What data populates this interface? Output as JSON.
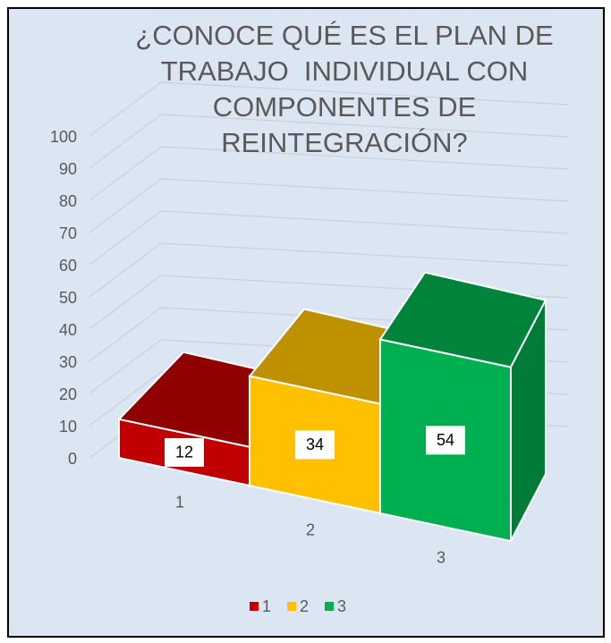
{
  "chart_data": {
    "type": "bar3d",
    "title": "¿CONOCE QUÉ ES EL PLAN DE TRABAJO  INDIVIDUAL CON COMPONENTES DE REINTEGRACIÓN?",
    "categories": [
      "1",
      "2",
      "3"
    ],
    "values": [
      12,
      34,
      54
    ],
    "colors": [
      "#c00000",
      "#ffc000",
      "#00b050"
    ],
    "ylim": [
      0,
      100
    ],
    "yticks": [
      0,
      10,
      20,
      30,
      40,
      50,
      60,
      70,
      80,
      90,
      100
    ],
    "grid": true,
    "legend": "bottom"
  }
}
